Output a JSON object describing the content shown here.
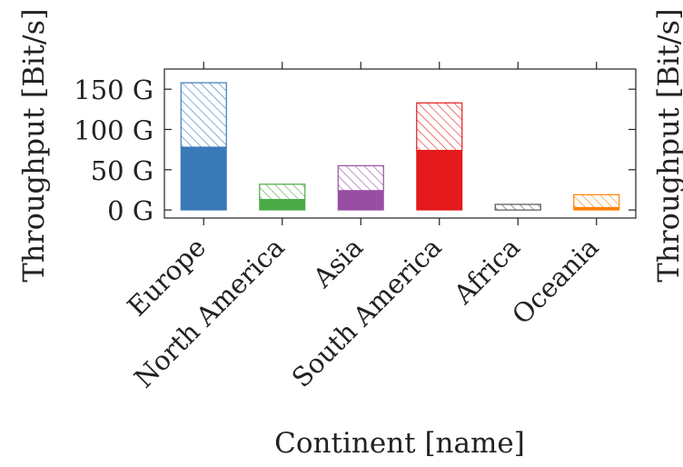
{
  "chart_data": {
    "type": "bar",
    "stacked": true,
    "xlabel": "Continent [name]",
    "ylabel": "Throughput [Bit/s]",
    "ylabel_secondary_partial": "Throughput [Bit/s]",
    "ylim": [
      -10,
      175
    ],
    "yticks": [
      {
        "value": 0,
        "label": "0 G"
      },
      {
        "value": 50,
        "label": "50 G"
      },
      {
        "value": 100,
        "label": "100 G"
      },
      {
        "value": 150,
        "label": "150 G"
      }
    ],
    "categories": [
      "Europe",
      "North America",
      "Asia",
      "South America",
      "Africa",
      "Oceania"
    ],
    "colors": [
      "#3a7ab8",
      "#4aab46",
      "#984ea3",
      "#e41a1c",
      "#555555",
      "#ff7f00"
    ],
    "series": [
      {
        "pattern": "solid",
        "values": [
          78,
          13,
          24,
          74,
          0,
          3
        ]
      },
      {
        "pattern": "hatched",
        "values": [
          80,
          19,
          31,
          59,
          7,
          16
        ]
      }
    ]
  }
}
